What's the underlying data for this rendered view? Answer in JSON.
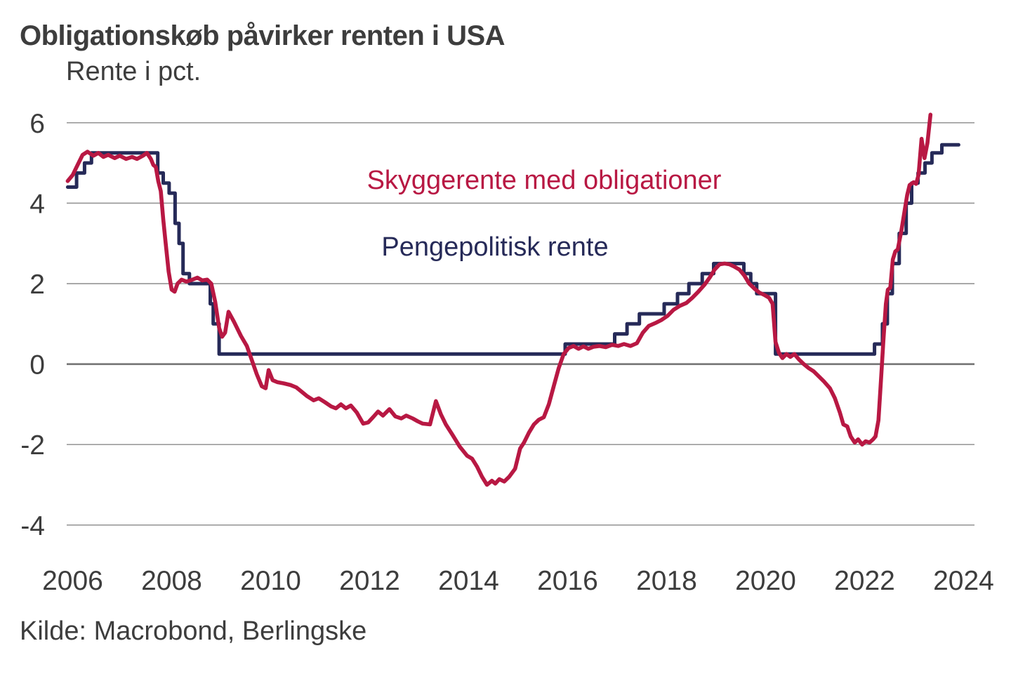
{
  "header": {
    "title": "Obligationskøb påvirker renten i USA",
    "subtitle": "Rente i pct."
  },
  "footer": {
    "source": "Kilde: Macrobond, Berlingske"
  },
  "colors": {
    "shadow_rate": "#b81843",
    "policy_rate": "#262a58",
    "gridline": "#9b9b9b",
    "zero_line": "#7b7b7b",
    "text": "#3d3d3d"
  },
  "chart_data": {
    "type": "line",
    "title": "Obligationskøb påvirker renten i USA",
    "ylabel": "Rente i pct.",
    "xlabel": "",
    "source": "Kilde: Macrobond, Berlingske",
    "grid": "horizontal",
    "legend_position": "inline-annotations",
    "x_ticks": [
      2006,
      2008,
      2010,
      2012,
      2014,
      2016,
      2018,
      2020,
      2022,
      2024
    ],
    "y_ticks": [
      6,
      4,
      2,
      0,
      -2,
      -4
    ],
    "x_range": [
      2005.88,
      2024.22
    ],
    "y_range": [
      -4.6,
      6.6
    ],
    "series": [
      {
        "name": "Skyggerente med obligationer",
        "color": "#b81843",
        "points": [
          [
            2005.9,
            4.55
          ],
          [
            2006.0,
            4.7
          ],
          [
            2006.1,
            4.95
          ],
          [
            2006.2,
            5.2
          ],
          [
            2006.3,
            5.28
          ],
          [
            2006.42,
            5.18
          ],
          [
            2006.52,
            5.25
          ],
          [
            2006.62,
            5.15
          ],
          [
            2006.72,
            5.2
          ],
          [
            2006.85,
            5.12
          ],
          [
            2006.95,
            5.18
          ],
          [
            2007.08,
            5.1
          ],
          [
            2007.2,
            5.15
          ],
          [
            2007.3,
            5.1
          ],
          [
            2007.42,
            5.18
          ],
          [
            2007.5,
            5.25
          ],
          [
            2007.58,
            5.1
          ],
          [
            2007.63,
            4.95
          ],
          [
            2007.68,
            4.9
          ],
          [
            2007.73,
            4.55
          ],
          [
            2007.78,
            4.3
          ],
          [
            2007.83,
            3.6
          ],
          [
            2007.88,
            3.0
          ],
          [
            2007.94,
            2.3
          ],
          [
            2008.0,
            1.85
          ],
          [
            2008.06,
            1.8
          ],
          [
            2008.12,
            2.0
          ],
          [
            2008.2,
            2.1
          ],
          [
            2008.3,
            2.05
          ],
          [
            2008.42,
            2.1
          ],
          [
            2008.52,
            2.15
          ],
          [
            2008.62,
            2.08
          ],
          [
            2008.72,
            2.1
          ],
          [
            2008.8,
            2.0
          ],
          [
            2008.88,
            1.55
          ],
          [
            2008.96,
            0.9
          ],
          [
            2009.02,
            0.68
          ],
          [
            2009.08,
            0.78
          ],
          [
            2009.15,
            1.3
          ],
          [
            2009.26,
            1.05
          ],
          [
            2009.4,
            0.7
          ],
          [
            2009.52,
            0.45
          ],
          [
            2009.62,
            0.1
          ],
          [
            2009.72,
            -0.25
          ],
          [
            2009.82,
            -0.55
          ],
          [
            2009.9,
            -0.6
          ],
          [
            2009.96,
            -0.15
          ],
          [
            2010.04,
            -0.4
          ],
          [
            2010.14,
            -0.45
          ],
          [
            2010.27,
            -0.48
          ],
          [
            2010.4,
            -0.52
          ],
          [
            2010.52,
            -0.58
          ],
          [
            2010.62,
            -0.68
          ],
          [
            2010.74,
            -0.8
          ],
          [
            2010.87,
            -0.9
          ],
          [
            2010.97,
            -0.85
          ],
          [
            2011.1,
            -0.95
          ],
          [
            2011.22,
            -1.05
          ],
          [
            2011.32,
            -1.1
          ],
          [
            2011.42,
            -1.0
          ],
          [
            2011.52,
            -1.1
          ],
          [
            2011.62,
            -1.03
          ],
          [
            2011.74,
            -1.2
          ],
          [
            2011.87,
            -1.48
          ],
          [
            2011.97,
            -1.45
          ],
          [
            2012.07,
            -1.32
          ],
          [
            2012.17,
            -1.18
          ],
          [
            2012.27,
            -1.28
          ],
          [
            2012.4,
            -1.12
          ],
          [
            2012.52,
            -1.3
          ],
          [
            2012.64,
            -1.35
          ],
          [
            2012.74,
            -1.28
          ],
          [
            2012.87,
            -1.35
          ],
          [
            2012.97,
            -1.42
          ],
          [
            2013.07,
            -1.48
          ],
          [
            2013.22,
            -1.5
          ],
          [
            2013.34,
            -0.92
          ],
          [
            2013.44,
            -1.25
          ],
          [
            2013.54,
            -1.5
          ],
          [
            2013.67,
            -1.75
          ],
          [
            2013.82,
            -2.05
          ],
          [
            2013.97,
            -2.28
          ],
          [
            2014.07,
            -2.35
          ],
          [
            2014.17,
            -2.55
          ],
          [
            2014.27,
            -2.8
          ],
          [
            2014.37,
            -3.0
          ],
          [
            2014.47,
            -2.9
          ],
          [
            2014.54,
            -2.97
          ],
          [
            2014.62,
            -2.86
          ],
          [
            2014.72,
            -2.92
          ],
          [
            2014.82,
            -2.8
          ],
          [
            2014.94,
            -2.6
          ],
          [
            2015.04,
            -2.1
          ],
          [
            2015.12,
            -1.95
          ],
          [
            2015.22,
            -1.7
          ],
          [
            2015.32,
            -1.5
          ],
          [
            2015.42,
            -1.38
          ],
          [
            2015.52,
            -1.32
          ],
          [
            2015.62,
            -1.0
          ],
          [
            2015.72,
            -0.55
          ],
          [
            2015.82,
            -0.1
          ],
          [
            2015.92,
            0.25
          ],
          [
            2016.02,
            0.4
          ],
          [
            2016.12,
            0.45
          ],
          [
            2016.22,
            0.38
          ],
          [
            2016.32,
            0.44
          ],
          [
            2016.42,
            0.38
          ],
          [
            2016.52,
            0.43
          ],
          [
            2016.64,
            0.45
          ],
          [
            2016.77,
            0.42
          ],
          [
            2016.9,
            0.48
          ],
          [
            2017.02,
            0.45
          ],
          [
            2017.14,
            0.5
          ],
          [
            2017.27,
            0.45
          ],
          [
            2017.4,
            0.52
          ],
          [
            2017.52,
            0.78
          ],
          [
            2017.64,
            0.95
          ],
          [
            2017.77,
            1.02
          ],
          [
            2017.9,
            1.1
          ],
          [
            2018.02,
            1.2
          ],
          [
            2018.14,
            1.35
          ],
          [
            2018.27,
            1.45
          ],
          [
            2018.4,
            1.52
          ],
          [
            2018.52,
            1.65
          ],
          [
            2018.64,
            1.8
          ],
          [
            2018.77,
            1.98
          ],
          [
            2018.87,
            2.15
          ],
          [
            2018.97,
            2.35
          ],
          [
            2019.07,
            2.48
          ],
          [
            2019.17,
            2.5
          ],
          [
            2019.27,
            2.48
          ],
          [
            2019.37,
            2.42
          ],
          [
            2019.47,
            2.35
          ],
          [
            2019.57,
            2.2
          ],
          [
            2019.67,
            2.0
          ],
          [
            2019.77,
            1.88
          ],
          [
            2019.87,
            1.78
          ],
          [
            2019.97,
            1.72
          ],
          [
            2020.07,
            1.65
          ],
          [
            2020.14,
            1.5
          ],
          [
            2020.2,
            0.55
          ],
          [
            2020.27,
            0.28
          ],
          [
            2020.34,
            0.15
          ],
          [
            2020.42,
            0.25
          ],
          [
            2020.5,
            0.18
          ],
          [
            2020.58,
            0.25
          ],
          [
            2020.67,
            0.12
          ],
          [
            2020.77,
            0.0
          ],
          [
            2020.87,
            -0.1
          ],
          [
            2020.97,
            -0.18
          ],
          [
            2021.07,
            -0.3
          ],
          [
            2021.17,
            -0.42
          ],
          [
            2021.3,
            -0.6
          ],
          [
            2021.4,
            -0.85
          ],
          [
            2021.5,
            -1.2
          ],
          [
            2021.57,
            -1.5
          ],
          [
            2021.65,
            -1.55
          ],
          [
            2021.72,
            -1.8
          ],
          [
            2021.8,
            -1.95
          ],
          [
            2021.87,
            -1.87
          ],
          [
            2021.95,
            -2.0
          ],
          [
            2022.02,
            -1.92
          ],
          [
            2022.1,
            -1.95
          ],
          [
            2022.17,
            -1.87
          ],
          [
            2022.22,
            -1.8
          ],
          [
            2022.28,
            -1.4
          ],
          [
            2022.33,
            -0.4
          ],
          [
            2022.38,
            0.6
          ],
          [
            2022.43,
            1.5
          ],
          [
            2022.47,
            1.85
          ],
          [
            2022.52,
            1.9
          ],
          [
            2022.57,
            2.6
          ],
          [
            2022.62,
            2.8
          ],
          [
            2022.67,
            2.85
          ],
          [
            2022.74,
            3.3
          ],
          [
            2022.8,
            3.75
          ],
          [
            2022.86,
            4.2
          ],
          [
            2022.91,
            4.45
          ],
          [
            2022.99,
            4.52
          ],
          [
            2023.04,
            4.48
          ],
          [
            2023.09,
            4.7
          ],
          [
            2023.15,
            5.6
          ],
          [
            2023.21,
            5.12
          ],
          [
            2023.27,
            5.5
          ],
          [
            2023.33,
            6.2
          ]
        ]
      },
      {
        "name": "Pengepolitisk rente",
        "color": "#262a58",
        "points": [
          [
            2005.9,
            4.4
          ],
          [
            2006.08,
            4.4
          ],
          [
            2006.08,
            4.75
          ],
          [
            2006.24,
            4.75
          ],
          [
            2006.24,
            5.0
          ],
          [
            2006.38,
            5.0
          ],
          [
            2006.38,
            5.25
          ],
          [
            2007.72,
            5.25
          ],
          [
            2007.72,
            4.75
          ],
          [
            2007.83,
            4.75
          ],
          [
            2007.83,
            4.5
          ],
          [
            2007.95,
            4.5
          ],
          [
            2007.95,
            4.25
          ],
          [
            2008.07,
            4.25
          ],
          [
            2008.07,
            3.5
          ],
          [
            2008.15,
            3.5
          ],
          [
            2008.15,
            3.0
          ],
          [
            2008.23,
            3.0
          ],
          [
            2008.23,
            2.25
          ],
          [
            2008.36,
            2.25
          ],
          [
            2008.36,
            2.0
          ],
          [
            2008.78,
            2.0
          ],
          [
            2008.78,
            1.5
          ],
          [
            2008.84,
            1.5
          ],
          [
            2008.84,
            1.0
          ],
          [
            2008.96,
            1.0
          ],
          [
            2008.96,
            0.25
          ],
          [
            2015.95,
            0.25
          ],
          [
            2015.95,
            0.5
          ],
          [
            2016.95,
            0.5
          ],
          [
            2016.95,
            0.75
          ],
          [
            2017.2,
            0.75
          ],
          [
            2017.2,
            1.0
          ],
          [
            2017.45,
            1.0
          ],
          [
            2017.45,
            1.25
          ],
          [
            2017.95,
            1.25
          ],
          [
            2017.95,
            1.5
          ],
          [
            2018.22,
            1.5
          ],
          [
            2018.22,
            1.75
          ],
          [
            2018.45,
            1.75
          ],
          [
            2018.45,
            2.0
          ],
          [
            2018.72,
            2.0
          ],
          [
            2018.72,
            2.25
          ],
          [
            2018.95,
            2.25
          ],
          [
            2018.95,
            2.5
          ],
          [
            2019.56,
            2.5
          ],
          [
            2019.56,
            2.25
          ],
          [
            2019.7,
            2.25
          ],
          [
            2019.7,
            2.0
          ],
          [
            2019.82,
            2.0
          ],
          [
            2019.82,
            1.75
          ],
          [
            2020.2,
            1.75
          ],
          [
            2020.2,
            0.25
          ],
          [
            2022.2,
            0.25
          ],
          [
            2022.2,
            0.5
          ],
          [
            2022.36,
            0.5
          ],
          [
            2022.36,
            1.0
          ],
          [
            2022.46,
            1.0
          ],
          [
            2022.46,
            1.75
          ],
          [
            2022.56,
            1.75
          ],
          [
            2022.56,
            2.5
          ],
          [
            2022.7,
            2.5
          ],
          [
            2022.7,
            3.25
          ],
          [
            2022.84,
            3.25
          ],
          [
            2022.84,
            4.0
          ],
          [
            2022.95,
            4.0
          ],
          [
            2022.95,
            4.5
          ],
          [
            2023.08,
            4.5
          ],
          [
            2023.08,
            4.75
          ],
          [
            2023.22,
            4.75
          ],
          [
            2023.22,
            5.0
          ],
          [
            2023.36,
            5.0
          ],
          [
            2023.36,
            5.25
          ],
          [
            2023.56,
            5.25
          ],
          [
            2023.56,
            5.45
          ],
          [
            2023.9,
            5.45
          ]
        ]
      }
    ]
  }
}
